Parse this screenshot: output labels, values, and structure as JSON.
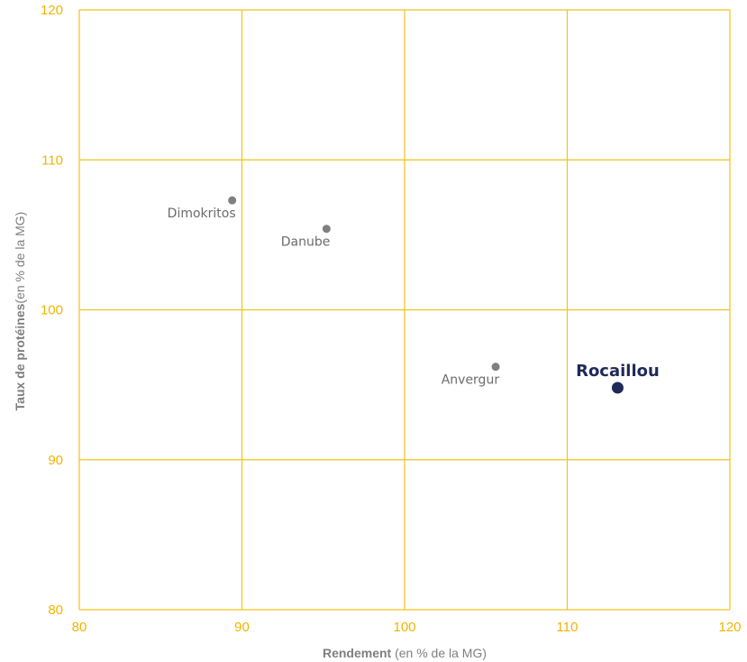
{
  "chart_data": {
    "type": "scatter",
    "xlabel_bold": "Rendement",
    "xlabel_rest": " (en % de la MG)",
    "ylabel_bold": "Taux de protéines",
    "ylabel_rest": "(en % de la MG)",
    "xlim": [
      80,
      120
    ],
    "ylim": [
      80,
      120
    ],
    "x_ticks": [
      80,
      90,
      100,
      110,
      120
    ],
    "y_ticks": [
      80,
      90,
      100,
      110,
      120
    ],
    "grid": true,
    "colors": {
      "grid": "#f2c21b",
      "tick_labels": "#f2b400",
      "points": "#808080",
      "highlight": "#1f2a5a"
    },
    "points": [
      {
        "label": "Dimokritos",
        "x": 89.4,
        "y": 107.3,
        "highlight": false,
        "label_pos": "below-left"
      },
      {
        "label": "Danube",
        "x": 95.2,
        "y": 105.4,
        "highlight": false,
        "label_pos": "below-left"
      },
      {
        "label": "Anvergur",
        "x": 105.6,
        "y": 96.2,
        "highlight": false,
        "label_pos": "below-left"
      },
      {
        "label": "Rocaillou",
        "x": 113.1,
        "y": 94.8,
        "highlight": true,
        "label_pos": "above"
      }
    ]
  }
}
